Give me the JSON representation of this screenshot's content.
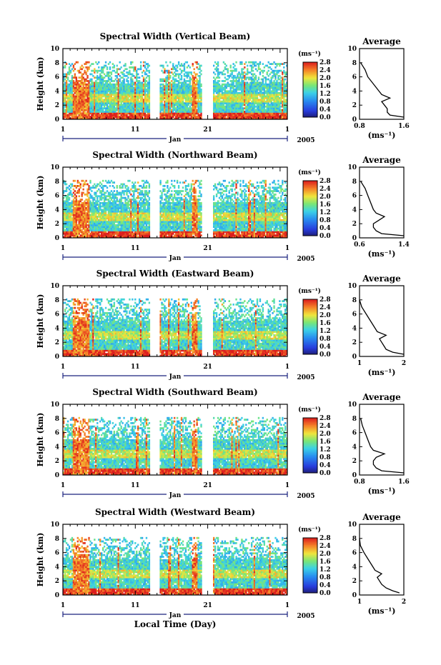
{
  "chart_data": [
    {
      "type": "heatmap",
      "title": "Spectral Width (Vertical Beam)",
      "ylabel": "Height (km)",
      "ylim": [
        0,
        10
      ],
      "yticks": [
        "0",
        "2",
        "4",
        "6",
        "8",
        "10"
      ],
      "xticks": [
        "1",
        "11",
        "21",
        "1"
      ],
      "xlabel_month": "Jan",
      "year": "2005",
      "cbar_unit": "(ms⁻¹)",
      "cbar_ticks": [
        "0.0",
        "0.4",
        "0.8",
        "1.2",
        "1.6",
        "2.0",
        "2.4",
        "2.8"
      ],
      "cbar_range": [
        0,
        2.8
      ],
      "profile": {
        "title": "Average",
        "xlim": [
          0.8,
          1.6
        ],
        "xticks": [
          "0.8",
          "1.6"
        ],
        "xlabel": "(ms⁻¹)",
        "yticks": [
          "0",
          "2",
          "4",
          "6",
          "8",
          "10"
        ],
        "heights": [
          0.3,
          0.6,
          1,
          1.5,
          2,
          2.5,
          3,
          3.5,
          4,
          5,
          6,
          7,
          8
        ],
        "values": [
          1.6,
          1.35,
          1.3,
          1.3,
          1.25,
          1.2,
          1.35,
          1.2,
          1.15,
          1.05,
          0.95,
          0.9,
          0.82
        ]
      }
    },
    {
      "type": "heatmap",
      "title": "Spectral Width (Northward Beam)",
      "ylabel": "Height (km)",
      "ylim": [
        0,
        10
      ],
      "yticks": [
        "0",
        "2",
        "4",
        "6",
        "8",
        "10"
      ],
      "xticks": [
        "1",
        "11",
        "21",
        "1"
      ],
      "xlabel_month": "Jan",
      "year": "2005",
      "cbar_unit": "(ms⁻¹)",
      "cbar_ticks": [
        "0.0",
        "0.4",
        "0.8",
        "1.2",
        "1.6",
        "2.0",
        "2.4",
        "2.8"
      ],
      "cbar_range": [
        0,
        2.8
      ],
      "profile": {
        "title": "Average",
        "xlim": [
          0.6,
          1.4
        ],
        "xticks": [
          "0.6",
          "1.4"
        ],
        "xlabel": "(ms⁻¹)",
        "yticks": [
          "0",
          "2",
          "4",
          "6",
          "8",
          "10"
        ],
        "heights": [
          0.3,
          0.6,
          1,
          1.5,
          2,
          2.5,
          3,
          3.5,
          4,
          5,
          6,
          7,
          8
        ],
        "values": [
          1.4,
          1.0,
          0.9,
          0.85,
          0.85,
          0.95,
          1.05,
          0.9,
          0.85,
          0.8,
          0.75,
          0.7,
          0.62
        ]
      }
    },
    {
      "type": "heatmap",
      "title": "Spectral Width (Eastward Beam)",
      "ylabel": "Height (km)",
      "ylim": [
        0,
        10
      ],
      "yticks": [
        "0",
        "2",
        "4",
        "6",
        "8",
        "10"
      ],
      "xticks": [
        "1",
        "11",
        "21",
        "1"
      ],
      "xlabel_month": "Jan",
      "year": "2005",
      "cbar_unit": "(ms⁻¹)",
      "cbar_ticks": [
        "0.0",
        "0.4",
        "0.8",
        "1.2",
        "1.6",
        "2.0",
        "2.4",
        "2.8"
      ],
      "cbar_range": [
        0,
        2.8
      ],
      "profile": {
        "title": "Average",
        "xlim": [
          1,
          2
        ],
        "xticks": [
          "1",
          "2"
        ],
        "xlabel": "(ms⁻¹)",
        "yticks": [
          "0",
          "2",
          "4",
          "6",
          "8",
          "10"
        ],
        "heights": [
          0.3,
          0.6,
          1,
          1.5,
          2,
          2.5,
          3,
          3.5,
          4,
          5,
          6,
          7,
          8
        ],
        "values": [
          2.0,
          1.75,
          1.6,
          1.55,
          1.5,
          1.45,
          1.6,
          1.4,
          1.35,
          1.25,
          1.15,
          1.05,
          1.0
        ]
      }
    },
    {
      "type": "heatmap",
      "title": "Spectral Width (Southward Beam)",
      "ylabel": "Height (km)",
      "ylim": [
        0,
        10
      ],
      "yticks": [
        "0",
        "2",
        "4",
        "6",
        "8",
        "10"
      ],
      "xticks": [
        "1",
        "11",
        "21",
        "1"
      ],
      "xlabel_month": "Jan",
      "year": "2005",
      "cbar_unit": "(ms⁻¹)",
      "cbar_ticks": [
        "0.0",
        "0.4",
        "0.8",
        "1.2",
        "1.6",
        "2.0",
        "2.4",
        "2.8"
      ],
      "cbar_range": [
        0,
        2.8
      ],
      "profile": {
        "title": "Average",
        "xlim": [
          0.8,
          1.6
        ],
        "xticks": [
          "0.8",
          "1.6"
        ],
        "xlabel": "(ms⁻¹)",
        "yticks": [
          "0",
          "2",
          "4",
          "6",
          "8",
          "10"
        ],
        "heights": [
          0.3,
          0.6,
          1,
          1.5,
          2,
          2.5,
          3,
          3.5,
          4,
          5,
          6,
          7,
          8
        ],
        "values": [
          1.6,
          1.2,
          1.1,
          1.05,
          1.05,
          1.1,
          1.25,
          1.05,
          1.0,
          0.95,
          0.9,
          0.85,
          0.82
        ]
      }
    },
    {
      "type": "heatmap",
      "title": "Spectral Width (Westward Beam)",
      "ylabel": "Height (km)",
      "ylim": [
        0,
        10
      ],
      "yticks": [
        "0",
        "2",
        "4",
        "6",
        "8",
        "10"
      ],
      "xticks": [
        "1",
        "11",
        "21",
        "1"
      ],
      "xlabel_month": "Jan",
      "year": "2005",
      "cbar_unit": "(ms⁻¹)",
      "cbar_ticks": [
        "0.0",
        "0.4",
        "0.8",
        "1.2",
        "1.6",
        "2.0",
        "2.4",
        "2.8"
      ],
      "cbar_range": [
        0,
        2.8
      ],
      "profile": {
        "title": "Average",
        "xlim": [
          1,
          2
        ],
        "xticks": [
          "1",
          "2"
        ],
        "xlabel": "(ms⁻¹)",
        "yticks": [
          "0",
          "2",
          "4",
          "6",
          "8",
          "10"
        ],
        "heights": [
          0.3,
          0.6,
          1,
          1.5,
          2,
          2.5,
          3,
          3.5,
          4,
          5,
          6,
          7,
          8
        ],
        "values": [
          1.9,
          1.75,
          1.6,
          1.5,
          1.45,
          1.4,
          1.5,
          1.35,
          1.3,
          1.2,
          1.1,
          1.02,
          1.0
        ]
      }
    }
  ],
  "footer": {
    "xlabel": "Local Time (Day)"
  }
}
